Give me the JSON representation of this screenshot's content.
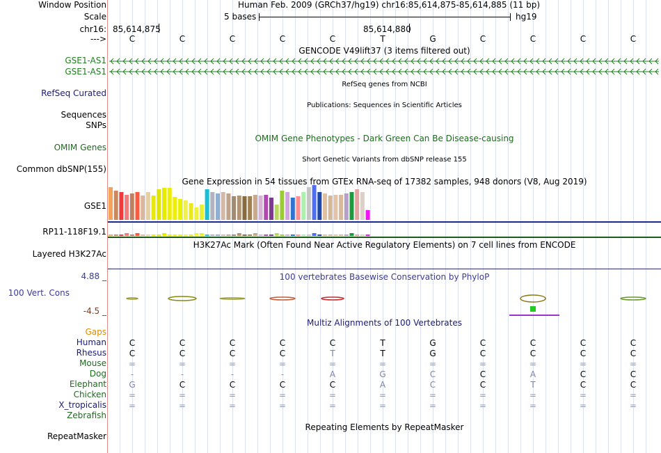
{
  "header": {
    "window_position_label": "Window Position",
    "window_position_value": "Human Feb. 2009 (GRCh37/hg19)   chr16:85,614,875-85,614,885 (11 bp)",
    "scale_label": "Scale",
    "scale_value": "5 bases",
    "scale_db": "hg19",
    "chrom_label": "chr16:",
    "pos_left": "85,614,875",
    "pos_mid": "85,614,880",
    "strand_label": "--->"
  },
  "bases": [
    "C",
    "C",
    "C",
    "C",
    "C",
    "T",
    "G",
    "C",
    "C",
    "C",
    "C"
  ],
  "tracks": {
    "gencode": {
      "title": "GENCODE V49lift37 (3 items filtered out)",
      "items": [
        "GSE1-AS1",
        "GSE1-AS1"
      ],
      "color": "#1e7f1e"
    },
    "refseq": {
      "label": "RefSeq Curated",
      "title": "RefSeq genes from NCBI",
      "color": "#1a1a7a"
    },
    "pubs": {
      "label": "Sequences",
      "title": "Publications: Sequences in Scientific Articles"
    },
    "snps": {
      "label": "SNPs"
    },
    "omim": {
      "label": "OMIM Genes",
      "title": "OMIM Gene Phenotypes - Dark Green Can Be Disease-causing",
      "color": "#1e6b1e"
    },
    "dbsnp": {
      "label": "Common dbSNP(155)",
      "title": "Short Genetic Variants from dbSNP release 155"
    },
    "gtex": {
      "title": "Gene Expression in 54 tissues from GTEx RNA-seq of 17382 samples, 948 donors (V8, Aug 2019)",
      "genes": [
        "GSE1",
        "RP11-118F19.1"
      ]
    },
    "h3k27ac": {
      "label": "Layered H3K27Ac",
      "title": "H3K27Ac Mark (Often Found Near Active Regulatory Elements) on 7 cell lines from ENCODE"
    },
    "cons": {
      "label": "100 Vert. Cons",
      "title": "100 vertebrates Basewise Conservation by PhyloP",
      "max": "4.88 _",
      "min": "-4.5 _",
      "label_color": "#3b3b99",
      "min_color": "#7a3b1e"
    },
    "multiz": {
      "title": "Multiz Alignments of 100 Vertebrates",
      "gaps_label": "Gaps",
      "gaps_color": "#e08a00",
      "species": [
        {
          "name": "Human",
          "color": "#1a1a7a",
          "bases": [
            "C",
            "C",
            "C",
            "C",
            "C",
            "T",
            "G",
            "C",
            "C",
            "C",
            "C"
          ]
        },
        {
          "name": "Rhesus",
          "color": "#1a1a7a",
          "bases": [
            "C",
            "C",
            "C",
            "C",
            "T",
            "T",
            "G",
            "C",
            "C",
            "C",
            "C"
          ]
        },
        {
          "name": "Mouse",
          "color": "#1e6b1e",
          "bases": [
            "=",
            "=",
            "=",
            "=",
            "=",
            "=",
            "=",
            "=",
            "=",
            "=",
            "="
          ]
        },
        {
          "name": "Dog",
          "color": "#1e6b1e",
          "bases": [
            "-",
            "-",
            "-",
            "-",
            "A",
            "G",
            "C",
            "C",
            "A",
            "C",
            "C"
          ]
        },
        {
          "name": "Elephant",
          "color": "#1e6b1e",
          "bases": [
            "G",
            "C",
            "C",
            "C",
            "C",
            "A",
            "C",
            "C",
            "T",
            "C",
            "C"
          ]
        },
        {
          "name": "Chicken",
          "color": "#1e6b1e",
          "bases": [
            "=",
            "=",
            "=",
            "=",
            "=",
            "=",
            "=",
            "=",
            "=",
            "=",
            "="
          ]
        },
        {
          "name": "X_tropicalis",
          "color": "#1a1a7a",
          "bases": [
            "=",
            "=",
            "=",
            "=",
            "=",
            "=",
            "=",
            "=",
            "=",
            "=",
            "="
          ]
        },
        {
          "name": "Zebrafish",
          "color": "#1e6b1e",
          "bases": [
            "",
            "",
            "",
            "",
            "",
            "",
            "",
            "",
            "",
            "",
            ""
          ]
        }
      ]
    },
    "repeatmasker": {
      "label": "RepeatMasker",
      "title": "Repeating Elements by RepeatMasker"
    }
  }
}
